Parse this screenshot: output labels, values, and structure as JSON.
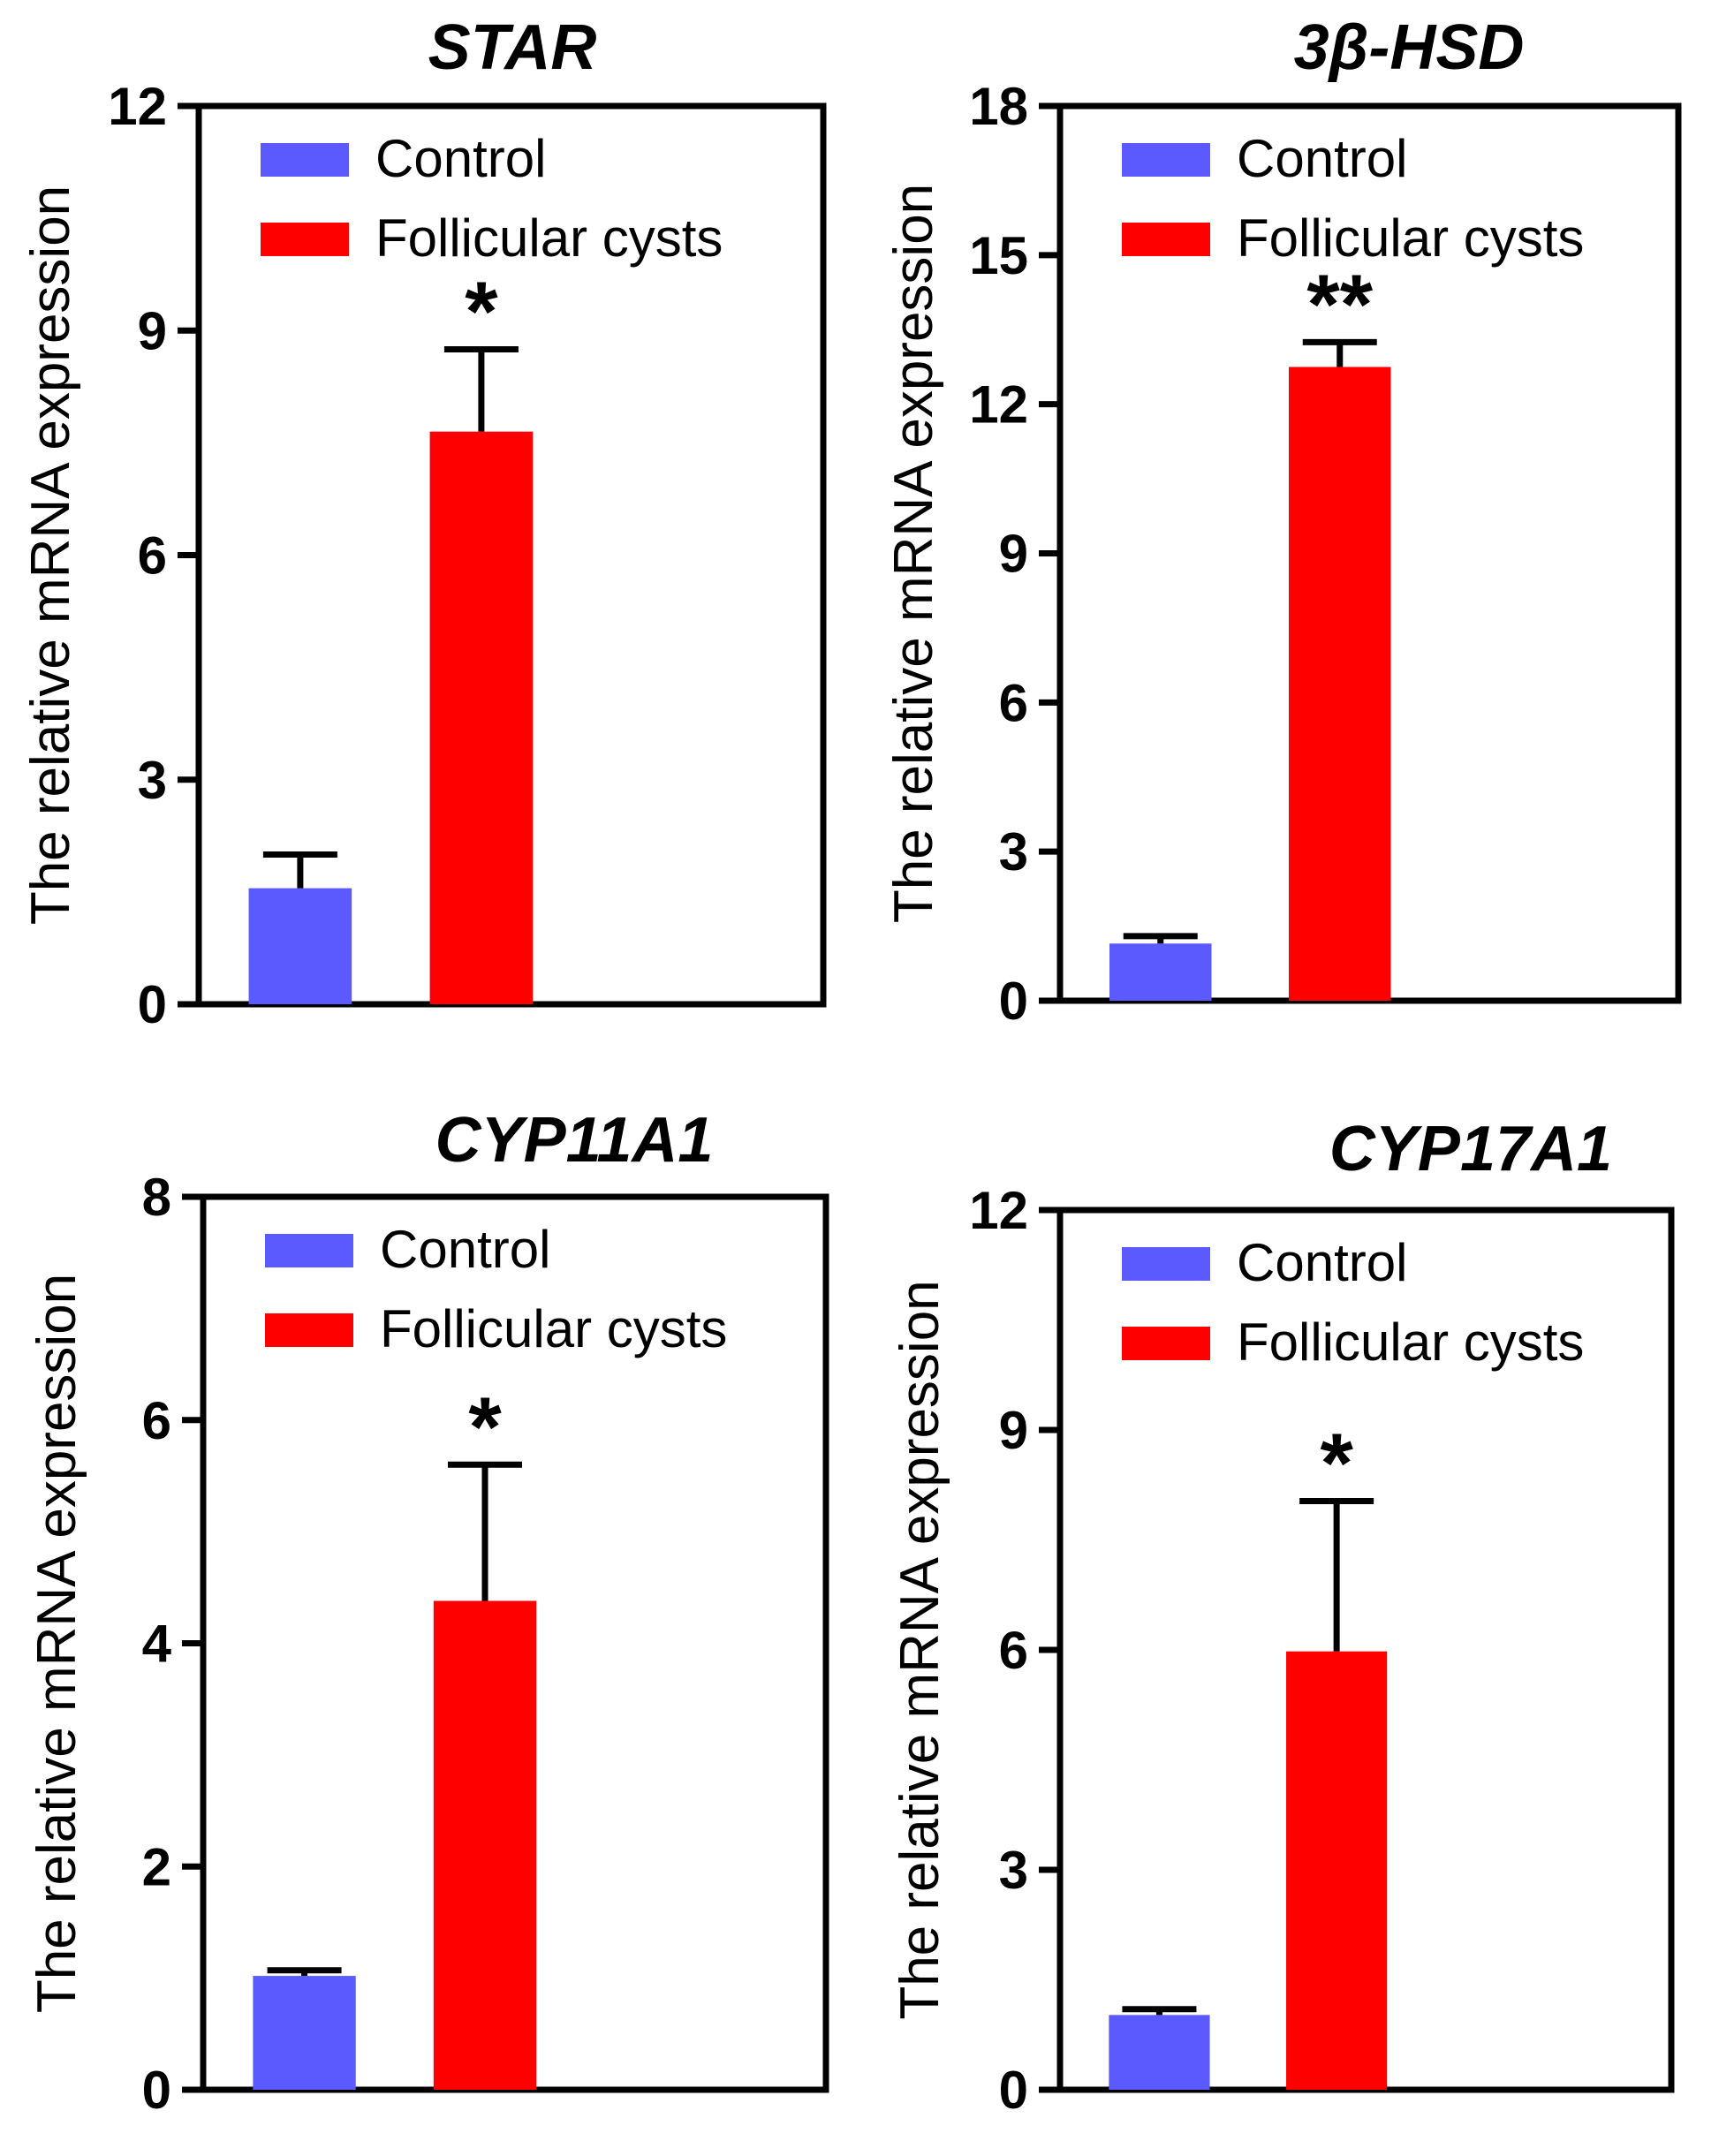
{
  "colors": {
    "control": "#5a5aff",
    "cysts": "#ff0000",
    "axis": "#000000"
  },
  "chart_data": [
    {
      "type": "bar",
      "title": "STAR",
      "ylabel": "The relative mRNA expression",
      "ylim": [
        0,
        12
      ],
      "yticks": [
        "0",
        "3",
        "6",
        "9",
        "12"
      ],
      "legend": [
        "Control",
        "Follicular cysts"
      ],
      "series": [
        {
          "name": "Control",
          "value": 1.55,
          "error": 0.45
        },
        {
          "name": "Follicular cysts",
          "value": 7.65,
          "error": 1.1,
          "significance": "*"
        }
      ]
    },
    {
      "type": "bar",
      "title": "3β-HSD",
      "ylabel": "The relative mRNA expression",
      "ylim": [
        0,
        18
      ],
      "yticks": [
        "0",
        "3",
        "6",
        "9",
        "12",
        "15",
        "18"
      ],
      "legend": [
        "Control",
        "Follicular cysts"
      ],
      "series": [
        {
          "name": "Control",
          "value": 1.15,
          "error": 0.15
        },
        {
          "name": "Follicular cysts",
          "value": 12.75,
          "error": 0.5,
          "significance": "**"
        }
      ]
    },
    {
      "type": "bar",
      "title": "CYP11A1",
      "ylabel": "The relative mRNA expression",
      "ylim": [
        0,
        8
      ],
      "yticks": [
        "0",
        "2",
        "4",
        "6",
        "8"
      ],
      "legend": [
        "Control",
        "Follicular cysts"
      ],
      "series": [
        {
          "name": "Control",
          "value": 1.02,
          "error": 0.05
        },
        {
          "name": "Follicular cysts",
          "value": 4.38,
          "error": 1.22,
          "significance": "*"
        }
      ]
    },
    {
      "type": "bar",
      "title": "CYP17A1",
      "ylabel": "The relative mRNA expression",
      "ylim": [
        0,
        12
      ],
      "yticks": [
        "0",
        "3",
        "6",
        "9",
        "12"
      ],
      "legend": [
        "Control",
        "Follicular cysts"
      ],
      "series": [
        {
          "name": "Control",
          "value": 1.02,
          "error": 0.08
        },
        {
          "name": "Follicular cysts",
          "value": 5.98,
          "error": 2.05,
          "significance": "*"
        }
      ]
    }
  ]
}
